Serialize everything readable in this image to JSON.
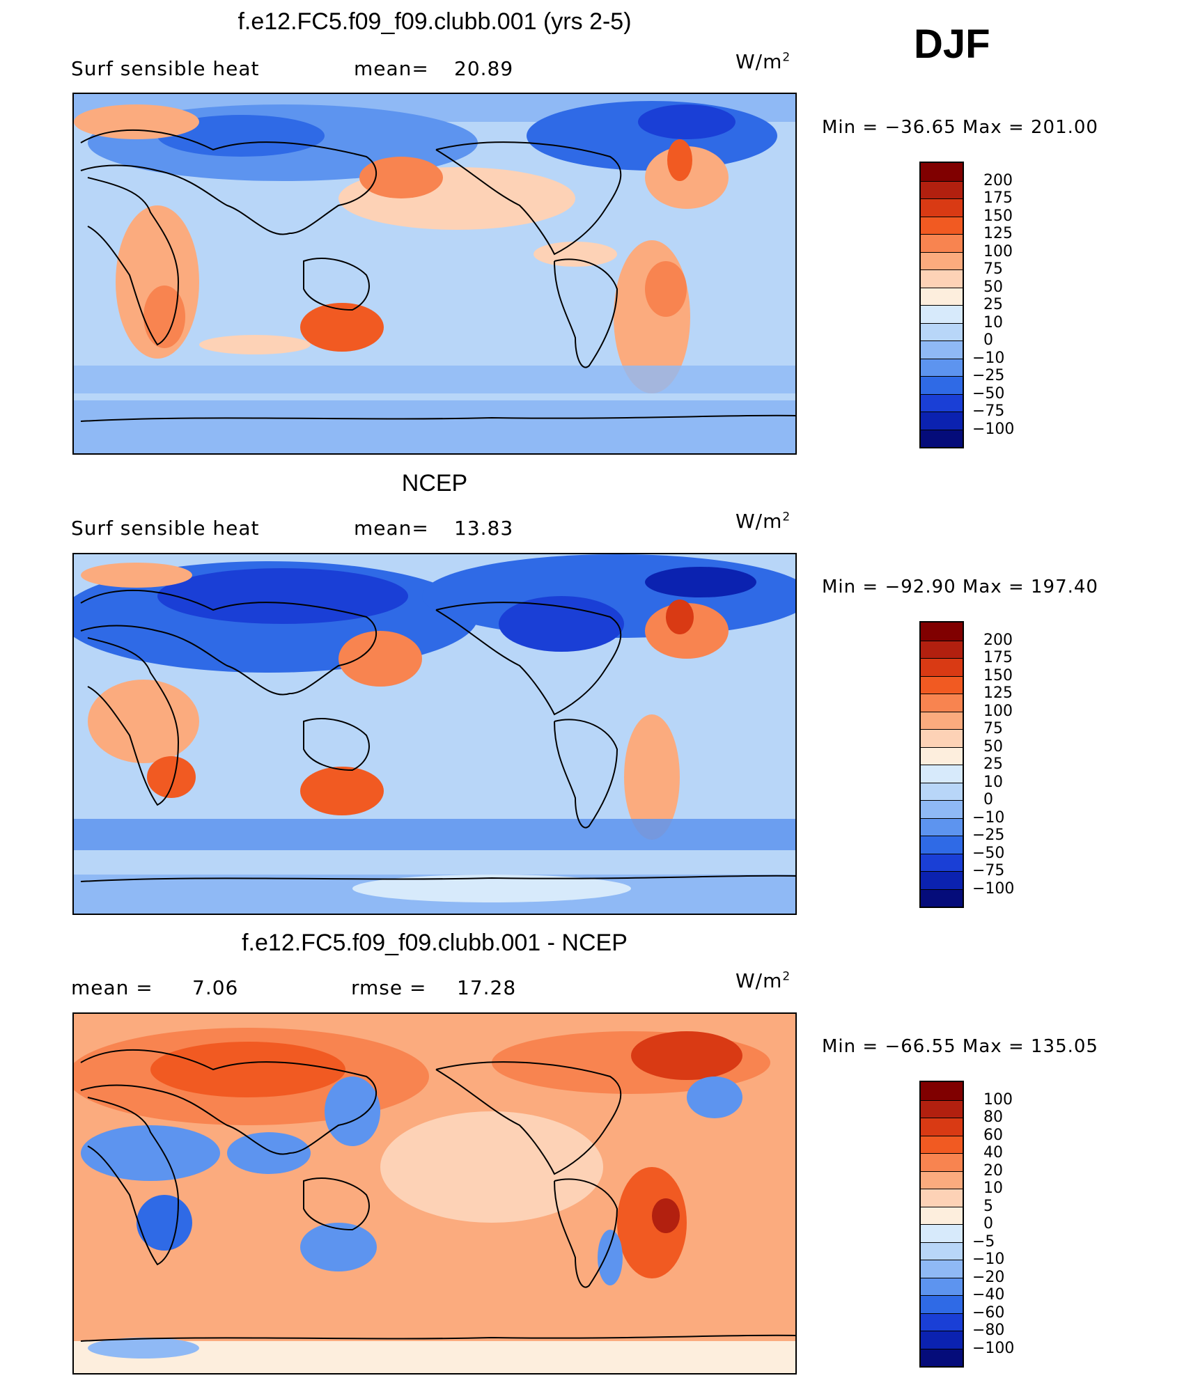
{
  "season": "DJF",
  "unit_parts": {
    "base": "W/m",
    "exp": "2"
  },
  "panels": [
    {
      "title": "f.e12.FC5.f09_f09.clubb.001 (yrs 2-5)",
      "left_label": "Surf  sensible  heat",
      "stat_label": "mean=",
      "stat_value": "20.89",
      "stat2_label": "",
      "stat2_value": "",
      "min_text": "Min  =  −36.65  Max  =  201.00",
      "colorbar_labels": [
        "200",
        "175",
        "150",
        "125",
        "100",
        "75",
        "50",
        "25",
        "10",
        "0",
        "−10",
        "−25",
        "−50",
        "−75",
        "−100"
      ],
      "colorbar_colors": [
        "#800000",
        "#b2200f",
        "#d93a14",
        "#f15a22",
        "#f88450",
        "#fbab7e",
        "#fdd2b6",
        "#fdeedd",
        "#d7eafb",
        "#b8d6f8",
        "#8fb9f5",
        "#5d94ef",
        "#2f6ae6",
        "#1a3fd6",
        "#0b22b0",
        "#050c7a"
      ],
      "map_base": "#b8d6f8"
    },
    {
      "title": "NCEP",
      "left_label": "Surf  sensible  heat",
      "stat_label": "mean=",
      "stat_value": "13.83",
      "stat2_label": "",
      "stat2_value": "",
      "min_text": "Min  =  −92.90  Max  =  197.40",
      "colorbar_labels": [
        "200",
        "175",
        "150",
        "125",
        "100",
        "75",
        "50",
        "25",
        "10",
        "0",
        "−10",
        "−25",
        "−50",
        "−75",
        "−100"
      ],
      "colorbar_colors": [
        "#800000",
        "#b2200f",
        "#d93a14",
        "#f15a22",
        "#f88450",
        "#fbab7e",
        "#fdd2b6",
        "#fdeedd",
        "#d7eafb",
        "#b8d6f8",
        "#8fb9f5",
        "#5d94ef",
        "#2f6ae6",
        "#1a3fd6",
        "#0b22b0",
        "#050c7a"
      ],
      "map_base": "#b8d6f8"
    },
    {
      "title": "f.e12.FC5.f09_f09.clubb.001 - NCEP",
      "left_label": "mean  =",
      "stat_label": "",
      "stat_value": "7.06",
      "stat2_label": "rmse  =",
      "stat2_value": "17.28",
      "min_text": "Min  =  −66.55  Max  =  135.05",
      "colorbar_labels": [
        "100",
        "80",
        "60",
        "40",
        "20",
        "10",
        "5",
        "0",
        "−5",
        "−10",
        "−20",
        "−40",
        "−60",
        "−80",
        "−100"
      ],
      "colorbar_colors": [
        "#800000",
        "#b2200f",
        "#d93a14",
        "#f15a22",
        "#f88450",
        "#fbab7e",
        "#fdd2b6",
        "#fdeedd",
        "#d7eafb",
        "#b8d6f8",
        "#8fb9f5",
        "#5d94ef",
        "#2f6ae6",
        "#1a3fd6",
        "#0b22b0",
        "#050c7a"
      ],
      "map_base": "#fbab7e"
    }
  ],
  "chart_data": [
    {
      "type": "heatmap",
      "title": "f.e12.FC5.f09_f09.clubb.001 (yrs 2-5)",
      "variable": "Surf  sensible  heat",
      "mean": 20.89,
      "min": -36.65,
      "max": 201.0,
      "units": "W/m2",
      "levels": [
        -100,
        -75,
        -50,
        -25,
        -10,
        0,
        10,
        25,
        50,
        75,
        100,
        125,
        150,
        175,
        200
      ]
    },
    {
      "type": "heatmap",
      "title": "NCEP",
      "variable": "Surf  sensible  heat",
      "mean": 13.83,
      "min": -92.9,
      "max": 197.4,
      "units": "W/m2",
      "levels": [
        -100,
        -75,
        -50,
        -25,
        -10,
        0,
        10,
        25,
        50,
        75,
        100,
        125,
        150,
        175,
        200
      ]
    },
    {
      "type": "heatmap",
      "title": "f.e12.FC5.f09_f09.clubb.001 - NCEP",
      "mean": 7.06,
      "rmse": 17.28,
      "min": -66.55,
      "max": 135.05,
      "units": "W/m2",
      "levels": [
        -100,
        -80,
        -60,
        -40,
        -20,
        -10,
        -5,
        0,
        5,
        10,
        20,
        40,
        60,
        80,
        100
      ]
    }
  ]
}
